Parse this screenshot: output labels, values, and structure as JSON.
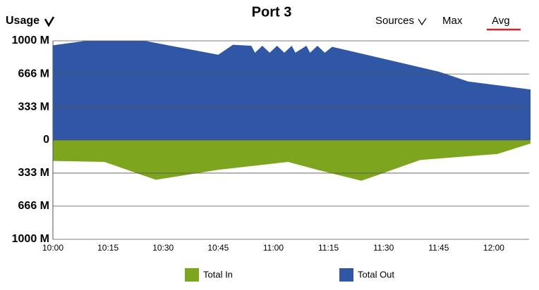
{
  "chart_data": {
    "type": "area",
    "title": "Port 3",
    "y_label": "Usage",
    "controls": [
      "Sources",
      "Max",
      "Avg"
    ],
    "xlim": [
      "10:00",
      "12:10"
    ],
    "xticks": [
      "10:00",
      "10:15",
      "10:30",
      "10:45",
      "11:00",
      "11:15",
      "11:30",
      "11:45",
      "12:00"
    ],
    "ylim": [
      -1000,
      1000
    ],
    "yticks": [
      {
        "value": 1000,
        "label": "1000 M"
      },
      {
        "value": 666,
        "label": "666 M"
      },
      {
        "value": 333,
        "label": "333 M"
      },
      0,
      {
        "value": -333,
        "label": "333 M"
      },
      {
        "value": -666,
        "label": "666 M"
      },
      {
        "value": -1000,
        "label": "1000 M"
      }
    ],
    "grid": true,
    "series": [
      {
        "name": "Total In",
        "color": "#7da51e",
        "x": [
          "10:00",
          "10:14",
          "10:28",
          "10:45",
          "11:04",
          "11:12",
          "11:24",
          "11:40",
          "12:01",
          "12:10"
        ],
        "values": [
          -210,
          -220,
          -400,
          -300,
          -220,
          -300,
          -410,
          -200,
          -140,
          -35
        ]
      },
      {
        "name": "Total Out",
        "color": "#2f57a6",
        "x": [
          "10:00",
          "10:09",
          "10:25",
          "10:45",
          "10:49",
          "10:54",
          "10:55",
          "10:57",
          "10:59",
          "11:01",
          "11:03",
          "11:05",
          "11:06",
          "11:09",
          "11:10",
          "11:12",
          "11:14",
          "11:16",
          "11:45",
          "11:53",
          "12:10"
        ],
        "values": [
          955,
          1000,
          1000,
          860,
          960,
          950,
          880,
          950,
          880,
          950,
          880,
          950,
          880,
          950,
          880,
          950,
          880,
          940,
          690,
          590,
          510
        ]
      }
    ]
  }
}
